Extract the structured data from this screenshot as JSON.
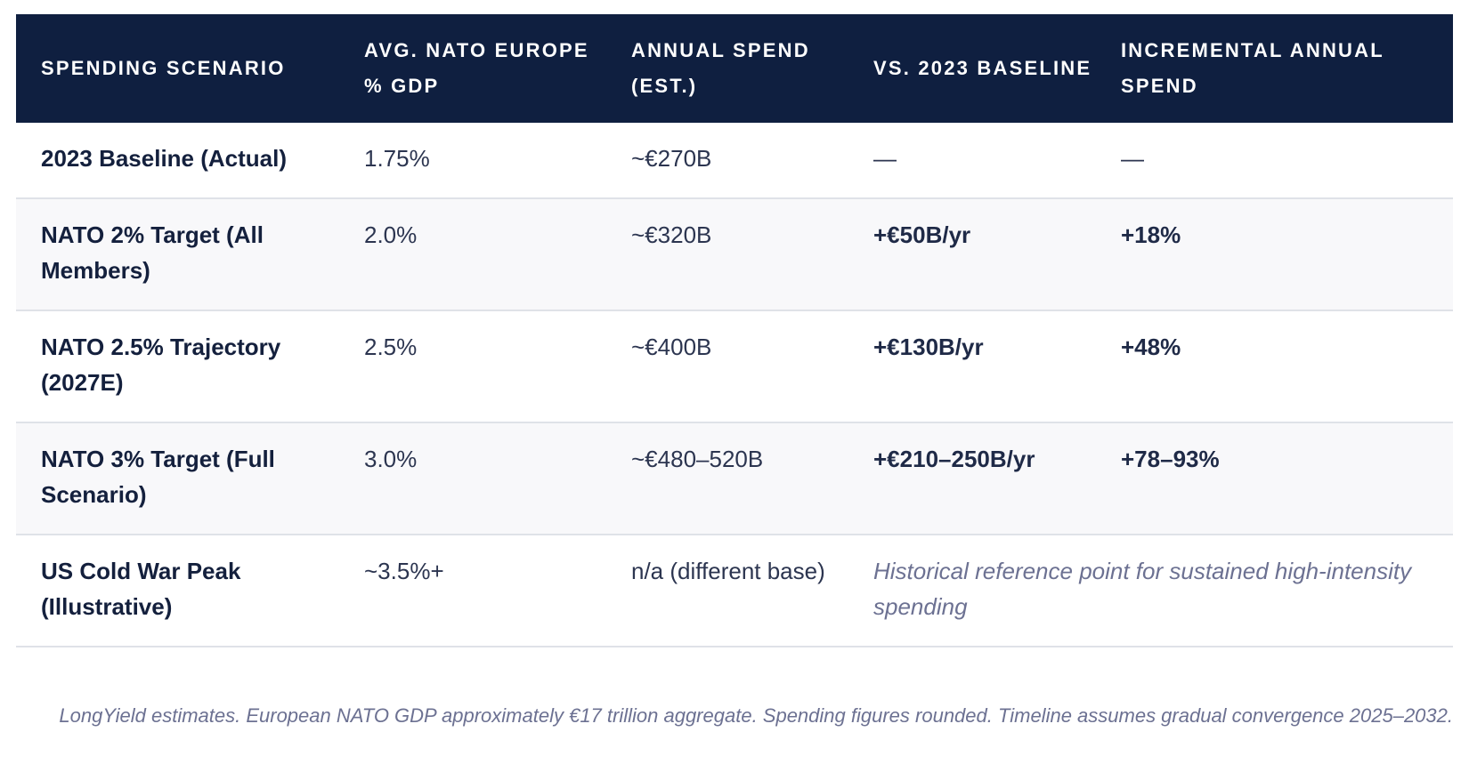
{
  "table": {
    "headers": [
      "SPENDING SCENARIO",
      "AVG. NATO EUROPE % GDP",
      "ANNUAL SPEND (EST.)",
      "VS. 2023 BASELINE",
      "INCREMENTAL ANNUAL SPEND"
    ],
    "rows": [
      {
        "scenario": "2023 Baseline (Actual)",
        "gdp_pct": "1.75%",
        "annual_spend": "~€270B",
        "vs_baseline": "—",
        "incremental": "—"
      },
      {
        "scenario": "NATO 2% Target (All Members)",
        "gdp_pct": "2.0%",
        "annual_spend": "~€320B",
        "vs_baseline": "+€50B/yr",
        "incremental": "+18%"
      },
      {
        "scenario": "NATO 2.5% Trajectory (2027E)",
        "gdp_pct": "2.5%",
        "annual_spend": "~€400B",
        "vs_baseline": "+€130B/yr",
        "incremental": "+48%"
      },
      {
        "scenario": "NATO 3% Target (Full Scenario)",
        "gdp_pct": "3.0%",
        "annual_spend": "~€480–520B",
        "vs_baseline": "+€210–250B/yr",
        "incremental": "+78–93%"
      },
      {
        "scenario": "US Cold War Peak (Illustrative)",
        "gdp_pct": "~3.5%+",
        "annual_spend": "n/a (different base)",
        "note": "Historical reference point for sustained high-intensity spending"
      }
    ]
  },
  "footnote": "LongYield estimates. European NATO GDP approximately €17 trillion aggregate. Spending figures rounded. Timeline assumes gradual convergence 2025–2032."
}
